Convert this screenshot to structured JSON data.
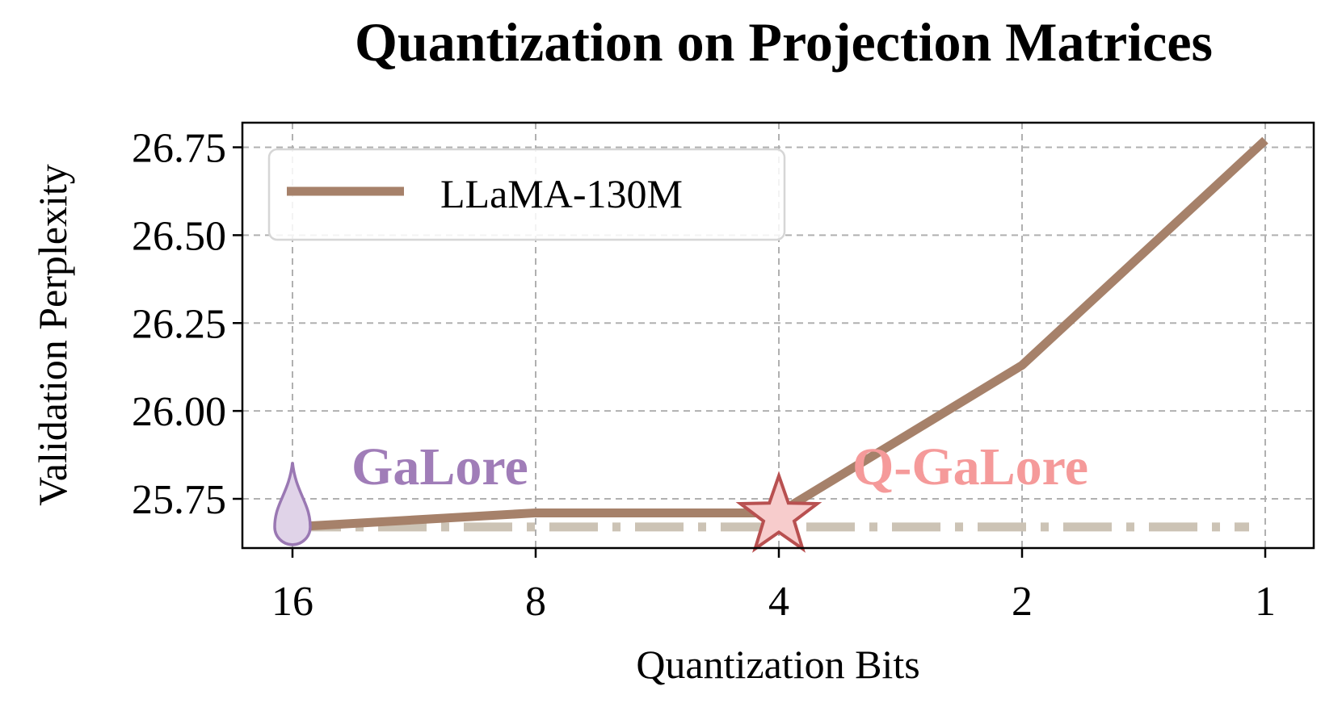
{
  "chart_data": {
    "type": "line",
    "title": "Quantization on Projection Matrices",
    "xlabel": "Quantization Bits",
    "ylabel": "Validation Perplexity",
    "x_ticks": [
      "16",
      "8",
      "4",
      "2",
      "1"
    ],
    "y_ticks": [
      "25.75",
      "26.00",
      "26.25",
      "26.50",
      "26.75"
    ],
    "y_tick_values": [
      25.75,
      26.0,
      26.25,
      26.5,
      26.75
    ],
    "ylim": [
      25.61,
      26.82
    ],
    "grid": true,
    "legend_position": "top-left",
    "series": [
      {
        "name": "LLaMA-130M",
        "x": [
          "16",
          "8",
          "4",
          "2",
          "1"
        ],
        "values": [
          25.67,
          25.71,
          25.71,
          26.13,
          26.77
        ],
        "color": "#a6816a"
      }
    ],
    "baseline": {
      "value": 25.67,
      "color": "#ccc3b5",
      "style": "dash-dot"
    },
    "annotations": [
      {
        "text": "GaLore",
        "color": "#a07db8",
        "marker": "droplet",
        "x": "16",
        "y": 25.67,
        "marker_fill": "#e0d3e8",
        "marker_edge": "#9a78b3"
      },
      {
        "text": "Q-GaLore",
        "color": "#f59a9a",
        "marker": "star",
        "x": "4",
        "y": 25.71,
        "marker_fill": "#f7cccc",
        "marker_edge": "#b85050"
      }
    ]
  }
}
